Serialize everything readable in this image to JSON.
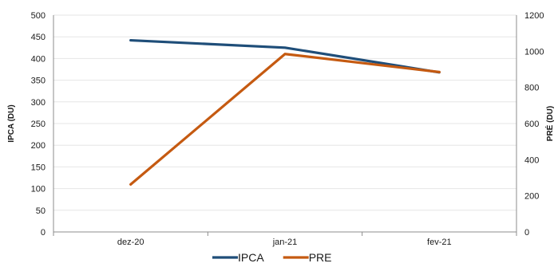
{
  "chart_data": {
    "type": "line",
    "categories": [
      "dez-20",
      "jan-21",
      "fev-21"
    ],
    "series": [
      {
        "name": "IPCA",
        "axis": "left",
        "color": "#1F4E79",
        "values": [
          442,
          425,
          368
        ]
      },
      {
        "name": "PRE",
        "axis": "right",
        "color": "#C55A11",
        "values": [
          263,
          985,
          885
        ]
      }
    ],
    "y_left": {
      "label": "IPCA (DU)",
      "ylim": [
        0,
        500
      ],
      "ticks": [
        "0",
        "50",
        "100",
        "150",
        "200",
        "250",
        "300",
        "350",
        "400",
        "450",
        "500"
      ]
    },
    "y_right": {
      "label": "PRÉ (DU)",
      "ylim": [
        0,
        1200
      ],
      "ticks": [
        "0",
        "200",
        "400",
        "600",
        "800",
        "1000",
        "1200"
      ]
    },
    "grid": "horizontal",
    "legend": "bottom-center"
  }
}
